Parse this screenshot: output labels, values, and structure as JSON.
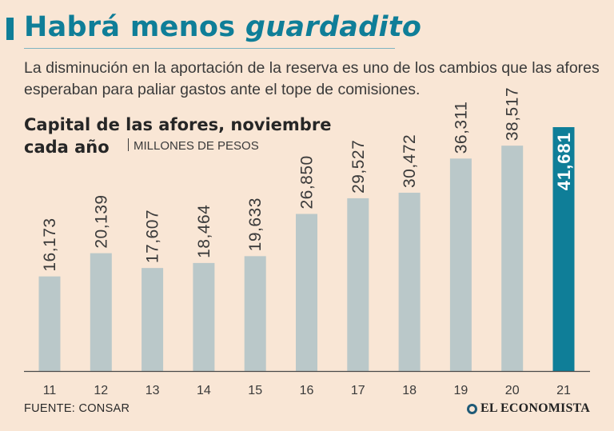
{
  "header": {
    "title_plain": "Habrá menos",
    "title_italic": "guardadito",
    "subtitle": "La disminución en la aportación de la reserva es uno de los cambios que las afores esperaban para paliar gastos ante el tope de comisiones."
  },
  "chart_data": {
    "type": "bar",
    "title_line1": "Capital de las afores, noviembre",
    "title_line2": "cada año",
    "unit": "MILLONES DE PESOS",
    "categories": [
      "11",
      "12",
      "13",
      "14",
      "15",
      "16",
      "17",
      "18",
      "19",
      "20",
      "21"
    ],
    "values": [
      16173,
      20139,
      17607,
      18464,
      19633,
      26850,
      29527,
      30472,
      36311,
      38517,
      41681
    ],
    "labels": [
      "16,173",
      "20,139",
      "17,607",
      "18,464",
      "19,633",
      "26,850",
      "29,527",
      "30,472",
      "36,311",
      "38,517",
      "41,681"
    ],
    "highlight_index": 10,
    "ylim": [
      0,
      41681
    ],
    "colors": {
      "bar": "#bac8c9",
      "highlight": "#0f7e98",
      "label": "#3a3a3a",
      "axis": "#4a4a4a",
      "highlight_label": "#ffffff"
    }
  },
  "footer": {
    "source": "FUENTE: CONSAR",
    "brand": "EL ECONOMISTA"
  }
}
